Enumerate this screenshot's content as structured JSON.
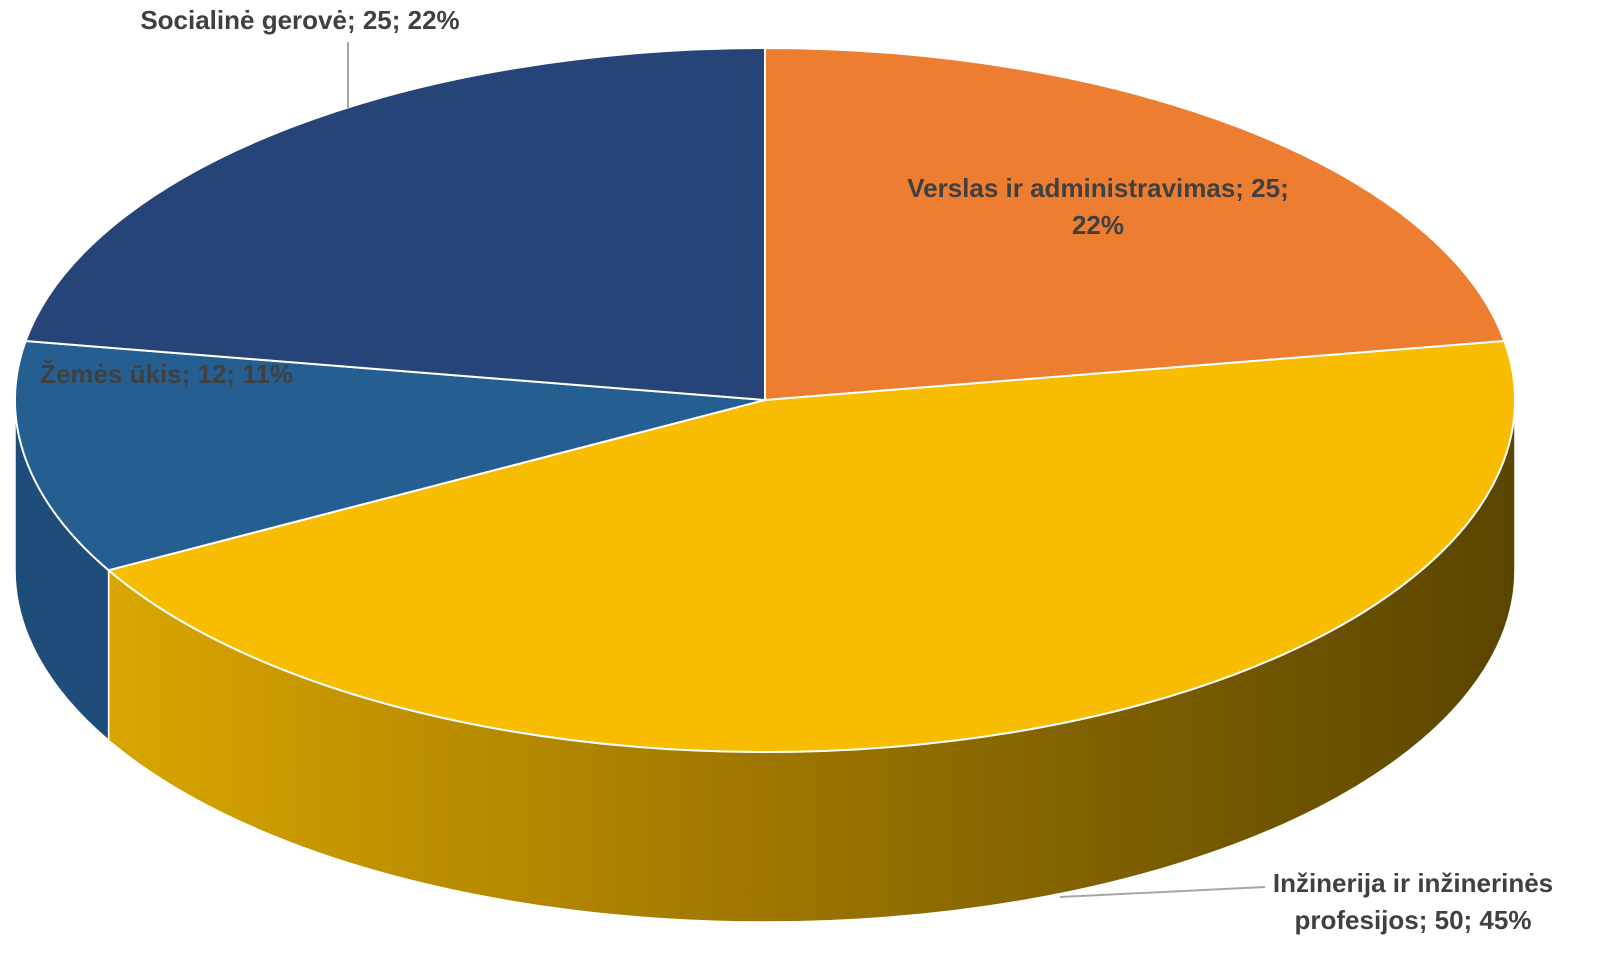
{
  "chart_data": {
    "type": "pie",
    "style": "3d",
    "values": [
      25,
      50,
      12,
      25
    ],
    "value_labels": [
      [
        "Verslas ir administravimas; 25;",
        "22%"
      ],
      [
        "Inžinerija ir inžinerinės",
        "profesijos; 50; 45%"
      ],
      [
        "Žemės ūkis; 12; 11%"
      ],
      [
        "Socialinė gerovė; 25; 22%"
      ]
    ],
    "colors": [
      "#ED7D31",
      "#F8BC00",
      "#255E91",
      "#264478"
    ],
    "side_colors": [
      "#B85E1F",
      "#B88C00",
      "#1D4D78",
      "#1C355E"
    ]
  }
}
